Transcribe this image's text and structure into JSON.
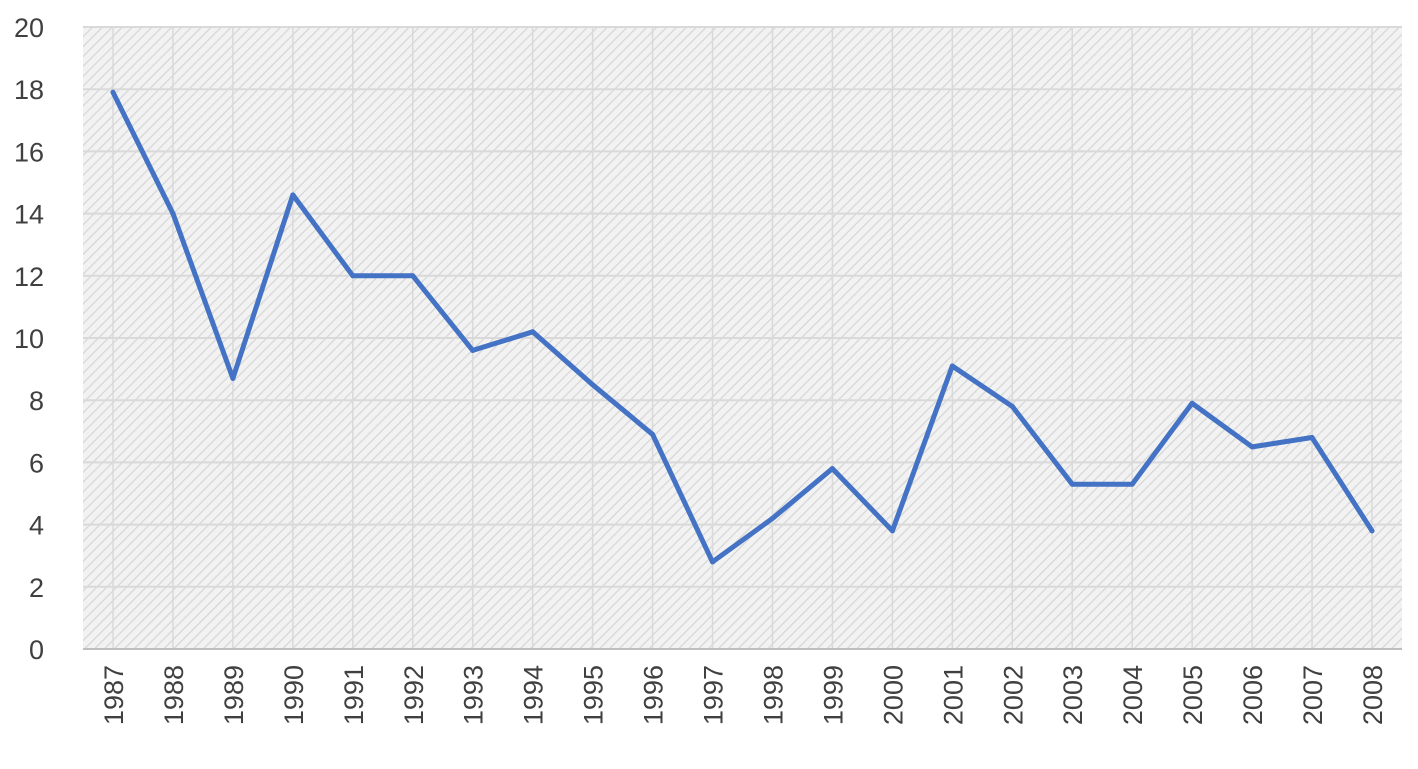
{
  "chart_data": {
    "type": "line",
    "title": "",
    "xlabel": "",
    "ylabel": "",
    "ylim": [
      0,
      20
    ],
    "yticks": [
      "0",
      "2",
      "4",
      "6",
      "8",
      "10",
      "12",
      "14",
      "16",
      "18",
      "20"
    ],
    "categories": [
      "1987",
      "1988",
      "1989",
      "1990",
      "1991",
      "1992",
      "1993",
      "1994",
      "1995",
      "1996",
      "1997",
      "1998",
      "1999",
      "2000",
      "2001",
      "2002",
      "2003",
      "2004",
      "2005",
      "2006",
      "2007",
      "2008"
    ],
    "series": [
      {
        "color": "#4472c4",
        "values": [
          17.9,
          14.0,
          8.7,
          14.6,
          12.0,
          12.0,
          9.6,
          10.2,
          8.5,
          6.9,
          2.8,
          4.2,
          5.8,
          3.8,
          9.1,
          7.8,
          5.3,
          5.3,
          7.9,
          6.5,
          6.8,
          3.8
        ]
      }
    ],
    "grid": true,
    "plot_fill": "diagonal-hatch",
    "legend": "none"
  }
}
